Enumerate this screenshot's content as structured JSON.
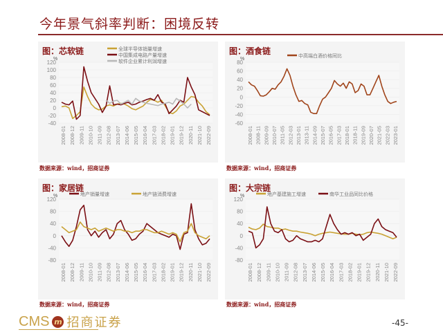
{
  "page": {
    "title": "今年景气斜率判断：困境反转",
    "page_number": "-45-",
    "logo_text": "CMS",
    "logo_badge": "m",
    "logo_cn": "招商证券"
  },
  "colors": {
    "brand_red": "#8b1a1a",
    "gold": "#c9a234",
    "dark_red": "#7a0f14",
    "gray": "#b8b8b8",
    "brown": "#a0441a"
  },
  "chart_data": [
    {
      "id": "chip_software",
      "type": "line",
      "title": "图：芯软链",
      "ylabel": "%",
      "ylim": [
        -40,
        120
      ],
      "yticks": [
        -40,
        -20,
        0,
        20,
        40,
        60,
        80,
        100,
        120
      ],
      "categories": [
        "2008-01",
        "2008-12",
        "2009-11",
        "2010-10",
        "2011-09",
        "2012-08",
        "2013-07",
        "2014-06",
        "2015-05",
        "2016-04",
        "2017-03",
        "2018-02",
        "2019-01",
        "2019-12",
        "2020-11",
        "2021-10",
        "2022-09"
      ],
      "series": [
        {
          "name": "全球半导体销量增速",
          "color": "#c9a234",
          "values": [
            3,
            5,
            0,
            -28,
            -20,
            -10,
            55,
            30,
            10,
            0,
            -5,
            -3,
            5,
            8,
            5,
            10,
            12,
            10,
            5,
            -2,
            -5,
            0,
            5,
            15,
            22,
            20,
            15,
            20,
            5,
            -12,
            -15,
            -8,
            5,
            10,
            20,
            30,
            28,
            15,
            5,
            -10,
            -18
          ]
        },
        {
          "name": "中国集成电路产量增速",
          "color": "#7a0f14",
          "values": [
            15,
            10,
            8,
            18,
            -30,
            -20,
            108,
            70,
            40,
            25,
            10,
            -12,
            5,
            58,
            8,
            10,
            8,
            12,
            15,
            8,
            10,
            15,
            18,
            22,
            25,
            20,
            35,
            15,
            10,
            -15,
            -5,
            5,
            20,
            15,
            80,
            55,
            35,
            -5,
            -10,
            -15,
            -20
          ]
        },
        {
          "name": "软件企业累计利润增速",
          "color": "#b8b8b8",
          "start_index": 12,
          "values": [
            20,
            12,
            18,
            20,
            10,
            15,
            20,
            10,
            25,
            18,
            15,
            12,
            10,
            8,
            6,
            10,
            12,
            15,
            10,
            25,
            18,
            10,
            0,
            10
          ]
        }
      ],
      "legend_position": "top"
    },
    {
      "id": "liquor",
      "type": "line",
      "title": "图：酒食链",
      "ylabel": "%",
      "ylim": [
        -60,
        80
      ],
      "yticks": [
        -60,
        -40,
        -20,
        0,
        20,
        40,
        60,
        80
      ],
      "categories": [
        "2008-01",
        "2008-11",
        "2009-09",
        "2010-07",
        "2011-05",
        "2012-03",
        "2013-01",
        "2013-11",
        "2014-09",
        "2015-07",
        "2016-05",
        "2017-03",
        "2018-01",
        "2018-11",
        "2019-09",
        "2020-07",
        "2021-05",
        "2022-03",
        "2023-01"
      ],
      "series": [
        {
          "name": "中高端白酒价格同比",
          "color": "#a0441a",
          "values": [
            35,
            28,
            25,
            15,
            3,
            2,
            5,
            12,
            20,
            18,
            28,
            35,
            48,
            65,
            50,
            25,
            5,
            -10,
            -8,
            -15,
            -18,
            -35,
            -38,
            -38,
            -20,
            -5,
            0,
            10,
            20,
            38,
            30,
            25,
            32,
            20,
            35,
            30,
            10,
            15,
            30,
            25,
            5,
            5,
            20,
            35,
            50,
            25,
            5,
            -10,
            -15,
            -12,
            -10
          ]
        }
      ],
      "legend_position": "top"
    },
    {
      "id": "home_furnishing",
      "type": "line",
      "title": "图：家居链",
      "ylabel": "%",
      "ylim": [
        -80,
        120
      ],
      "yticks": [
        -80,
        -40,
        0,
        40,
        80,
        120
      ],
      "categories": [
        "2008-01",
        "2008-12",
        "2009-11",
        "2010-10",
        "2011-09",
        "2012-08",
        "2013-07",
        "2014-06",
        "2015-05",
        "2016-04",
        "2017-03",
        "2018-02",
        "2019-01",
        "2019-12",
        "2020-11",
        "2021-10",
        "2022-09"
      ],
      "series": [
        {
          "name": "地产销量增速",
          "color": "#7a0f14",
          "values": [
            0,
            -20,
            -35,
            -15,
            30,
            85,
            100,
            20,
            0,
            15,
            -5,
            10,
            20,
            -10,
            5,
            40,
            50,
            20,
            5,
            -15,
            -10,
            5,
            15,
            40,
            30,
            20,
            10,
            5,
            0,
            -5,
            5,
            0,
            -45,
            5,
            10,
            105,
            20,
            -10,
            -30,
            -25,
            -10
          ]
        },
        {
          "name": "地产链消费增速",
          "color": "#c9a234",
          "values": [
            30,
            20,
            10,
            15,
            20,
            45,
            30,
            25,
            20,
            25,
            15,
            20,
            25,
            20,
            15,
            20,
            20,
            15,
            15,
            10,
            15,
            15,
            20,
            20,
            15,
            10,
            10,
            15,
            10,
            5,
            10,
            5,
            -20,
            10,
            15,
            40,
            10,
            0,
            -5,
            -10,
            0
          ]
        }
      ],
      "legend_position": "top"
    },
    {
      "id": "commodities",
      "type": "line",
      "title": "图：大宗链",
      "ylabel": "%",
      "ylim": [
        -80,
        120
      ],
      "yticks": [
        -80,
        -40,
        0,
        40,
        80,
        120
      ],
      "categories": [
        "2008-01",
        "2008-12",
        "2009-11",
        "2010-10",
        "2011-09",
        "2012-08",
        "2013-07",
        "2014-06",
        "2015-05",
        "2016-04",
        "2017-03",
        "2018-02",
        "2019-01",
        "2019-12",
        "2020-11",
        "2021-10",
        "2022-09"
      ],
      "series": [
        {
          "name": "地产基建施工增速",
          "color": "#c9a234",
          "values": [
            28,
            22,
            20,
            25,
            38,
            30,
            28,
            25,
            25,
            20,
            22,
            18,
            15,
            15,
            12,
            10,
            8,
            5,
            0,
            5,
            8,
            10,
            12,
            10,
            8,
            6,
            5,
            5,
            8,
            5,
            3,
            5,
            10,
            12,
            10,
            8,
            5,
            0,
            -5,
            -10,
            -5
          ]
        },
        {
          "name": "南华工业品同比价格",
          "color": "#7a0f14",
          "values": [
            15,
            10,
            -40,
            -30,
            -10,
            95,
            40,
            15,
            10,
            20,
            -10,
            -20,
            -15,
            0,
            -10,
            -15,
            -20,
            -20,
            -15,
            -20,
            -10,
            30,
            70,
            40,
            20,
            5,
            10,
            5,
            10,
            0,
            5,
            -15,
            -5,
            5,
            40,
            55,
            30,
            20,
            15,
            10,
            -5
          ]
        }
      ],
      "legend_position": "top"
    }
  ],
  "source_note": "数据来源：wind，招商证券"
}
